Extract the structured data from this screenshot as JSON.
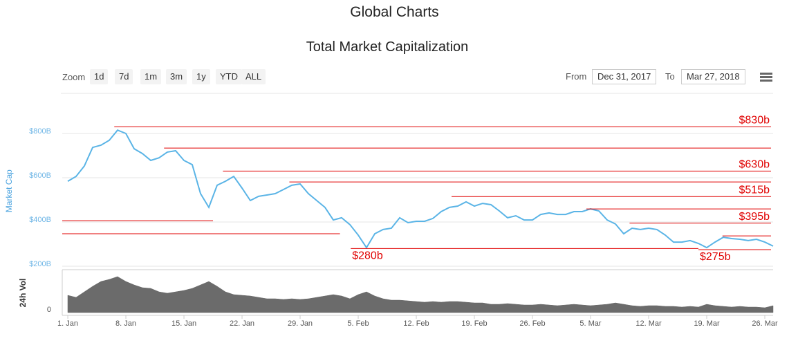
{
  "header": {
    "title": "Global Charts"
  },
  "toolbar": {
    "zoom_label": "Zoom",
    "zoom_buttons": [
      "1d",
      "7d",
      "1m",
      "3m",
      "1y",
      "YTD",
      "ALL"
    ],
    "from_label": "From",
    "from_date": "Dec 31, 2017",
    "to_label": "To",
    "to_date": "Mar 27, 2018"
  },
  "chart_data": [
    {
      "type": "line",
      "title": "Total Market Capitalization",
      "y_label": "Market Cap",
      "color": "#5ab4e6",
      "x": [
        0,
        1,
        2,
        3,
        4,
        5,
        6,
        7,
        8,
        9,
        10,
        11,
        12,
        13,
        14,
        15,
        16,
        17,
        18,
        19,
        20,
        21,
        22,
        23,
        24,
        25,
        26,
        27,
        28,
        29,
        30,
        31,
        32,
        33,
        34,
        35,
        36,
        37,
        38,
        39,
        40,
        41,
        42,
        43,
        44,
        45,
        46,
        47,
        48,
        49,
        50,
        51,
        52,
        53,
        54,
        55,
        56,
        57,
        58,
        59,
        60,
        61,
        62,
        63,
        64,
        65,
        66,
        67,
        68,
        69,
        70,
        71,
        72,
        73,
        74,
        75,
        76,
        77,
        78,
        79,
        80,
        81,
        82,
        83,
        84,
        85
      ],
      "values": [
        584,
        606,
        653,
        737,
        747,
        769,
        815,
        800,
        731,
        709,
        678,
        690,
        716,
        722,
        678,
        659,
        528,
        466,
        566,
        584,
        606,
        553,
        497,
        516,
        522,
        528,
        547,
        566,
        572,
        528,
        497,
        466,
        409,
        419,
        388,
        341,
        284,
        347,
        366,
        372,
        419,
        397,
        403,
        403,
        416,
        447,
        466,
        472,
        491,
        472,
        484,
        478,
        450,
        419,
        428,
        409,
        409,
        434,
        441,
        434,
        434,
        447,
        447,
        459,
        450,
        409,
        391,
        347,
        372,
        366,
        372,
        366,
        341,
        309,
        309,
        316,
        303,
        284,
        309,
        331,
        325,
        322,
        316,
        322,
        309,
        291
      ],
      "xlim": [
        -0.67,
        85
      ],
      "ylim": [
        200,
        880
      ],
      "yticks": [
        {
          "value": 200,
          "label": "$200B"
        },
        {
          "value": 400,
          "label": "$400B"
        },
        {
          "value": 600,
          "label": "$600B"
        },
        {
          "value": 800,
          "label": "$800B"
        }
      ],
      "grid": true,
      "annotation_color": "#e00000",
      "annotations": [
        {
          "value": 830,
          "x_range": [
            5.6,
            84.75
          ],
          "label": "$830b",
          "label_position": "above-end"
        },
        {
          "value": 734,
          "x_range": [
            11.6,
            84.75
          ]
        },
        {
          "value": 630,
          "x_range": [
            18.7,
            84.75
          ],
          "label": "$630b",
          "label_position": "above-end"
        },
        {
          "value": 581,
          "x_range": [
            26.7,
            84.75
          ]
        },
        {
          "value": 515,
          "x_range": [
            46.25,
            84.75
          ],
          "label": "$515b",
          "label_position": "above-end"
        },
        {
          "value": 459,
          "x_range": [
            62.5,
            84.75
          ]
        },
        {
          "value": 395,
          "x_range": [
            67.7,
            84.75
          ],
          "label": "$395b",
          "label_position": "above-end"
        },
        {
          "value": 337,
          "x_range": [
            78.9,
            84.75
          ]
        },
        {
          "value": 406,
          "x_range": [
            -0.67,
            17.5
          ]
        },
        {
          "value": 347,
          "x_range": [
            -0.67,
            32.8
          ]
        },
        {
          "value": 280,
          "x_range": [
            34.1,
            76
          ],
          "label": "$280b",
          "label_position": "below-start"
        },
        {
          "value": 275,
          "x_range": [
            76,
            84.75
          ],
          "label": "$275b",
          "label_position": "below-start"
        }
      ]
    },
    {
      "type": "area",
      "y_label": "24h Vol",
      "color": "#6b6b6b",
      "x": [
        0,
        1,
        2,
        3,
        4,
        5,
        6,
        7,
        8,
        9,
        10,
        11,
        12,
        13,
        14,
        15,
        16,
        17,
        18,
        19,
        20,
        21,
        22,
        23,
        24,
        25,
        26,
        27,
        28,
        29,
        30,
        31,
        32,
        33,
        34,
        35,
        36,
        37,
        38,
        39,
        40,
        41,
        42,
        43,
        44,
        45,
        46,
        47,
        48,
        49,
        50,
        51,
        52,
        53,
        54,
        55,
        56,
        57,
        58,
        59,
        60,
        61,
        62,
        63,
        64,
        65,
        66,
        67,
        68,
        69,
        70,
        71,
        72,
        73,
        74,
        75,
        76,
        77,
        78,
        79,
        80,
        81,
        82,
        83,
        84,
        85
      ],
      "values": [
        25,
        22,
        30,
        38,
        45,
        48,
        52,
        45,
        40,
        36,
        35,
        30,
        28,
        30,
        32,
        35,
        40,
        45,
        38,
        30,
        26,
        25,
        24,
        22,
        20,
        20,
        19,
        20,
        19,
        20,
        22,
        24,
        26,
        24,
        20,
        26,
        30,
        24,
        20,
        18,
        18,
        17,
        16,
        15,
        16,
        15,
        16,
        16,
        15,
        14,
        14,
        12,
        12,
        13,
        12,
        11,
        11,
        12,
        11,
        10,
        11,
        12,
        11,
        10,
        11,
        12,
        14,
        12,
        10,
        9,
        10,
        10,
        9,
        9,
        8,
        9,
        8,
        12,
        10,
        9,
        8,
        9,
        8,
        8,
        7,
        10
      ],
      "xlim": [
        -0.67,
        85
      ],
      "ylim": [
        0,
        57
      ],
      "yticks": [
        0
      ],
      "xticks": [
        {
          "value": 0,
          "label": "1. Jan"
        },
        {
          "value": 7,
          "label": "8. Jan"
        },
        {
          "value": 14,
          "label": "15. Jan"
        },
        {
          "value": 21,
          "label": "22. Jan"
        },
        {
          "value": 28,
          "label": "29. Jan"
        },
        {
          "value": 35,
          "label": "5. Feb"
        },
        {
          "value": 42,
          "label": "12. Feb"
        },
        {
          "value": 49,
          "label": "19. Feb"
        },
        {
          "value": 56,
          "label": "26. Feb"
        },
        {
          "value": 63,
          "label": "5. Mar"
        },
        {
          "value": 70,
          "label": "12. Mar"
        },
        {
          "value": 77,
          "label": "19. Mar"
        },
        {
          "value": 84,
          "label": "26. Mar"
        }
      ]
    }
  ]
}
